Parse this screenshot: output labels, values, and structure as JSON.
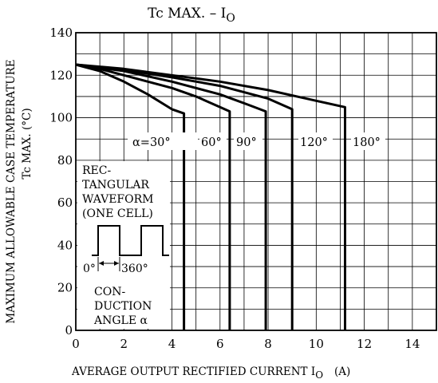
{
  "chart_data": {
    "type": "line",
    "title": "Tc MAX.  –  I",
    "title_subscript": "O",
    "xlabel": "AVERAGE OUTPUT RECTIFIED CURRENT  I",
    "xlabel_subscript": "O",
    "xlabel_unit": "(A)",
    "ylabel": "MAXIMUM ALLOWABLE CASE TEMPERATURE",
    "ylabel2": "Tc MAX.  (°C)",
    "xlim": [
      0,
      15
    ],
    "ylim": [
      0,
      140
    ],
    "x_ticks": [
      "0",
      "2",
      "4",
      "6",
      "8",
      "10",
      "12",
      "14"
    ],
    "y_ticks": [
      "0",
      "20",
      "40",
      "60",
      "80",
      "100",
      "120",
      "140"
    ],
    "grid": true,
    "series": [
      {
        "name": "α=30°",
        "x": [
          0,
          1,
          2,
          3,
          4,
          4.5,
          4.5
        ],
        "y": [
          125,
          122,
          117,
          111,
          104,
          102,
          0
        ]
      },
      {
        "name": "60°",
        "x": [
          0,
          1,
          2,
          3,
          4,
          5,
          6,
          6.4,
          6.4
        ],
        "y": [
          125,
          123,
          120,
          117,
          114,
          110,
          105,
          103,
          0
        ]
      },
      {
        "name": "90°",
        "x": [
          0,
          2,
          4,
          6,
          7.2,
          7.9,
          7.9
        ],
        "y": [
          125,
          122,
          117,
          111,
          106,
          103,
          0
        ]
      },
      {
        "name": "120°",
        "x": [
          0,
          2,
          4,
          6,
          8,
          9.0,
          9.0
        ],
        "y": [
          125,
          122.5,
          119,
          115,
          109,
          104,
          0
        ]
      },
      {
        "name": "180°",
        "x": [
          0,
          2,
          4,
          6,
          8,
          10,
          11.2,
          11.2
        ],
        "y": [
          125,
          123,
          120,
          117,
          113,
          108,
          105,
          0
        ]
      }
    ],
    "series_labels": [
      "α=30°",
      "60°",
      "90°",
      "120°",
      "180°"
    ],
    "inset": {
      "lines": [
        "REC-",
        "TANGULAR",
        "WAVEFORM",
        "(ONE CELL)"
      ],
      "left_label": "0°",
      "right_label": "360°",
      "bottom_lines": [
        "CON-",
        "DUCTION",
        "ANGLE α"
      ]
    }
  }
}
